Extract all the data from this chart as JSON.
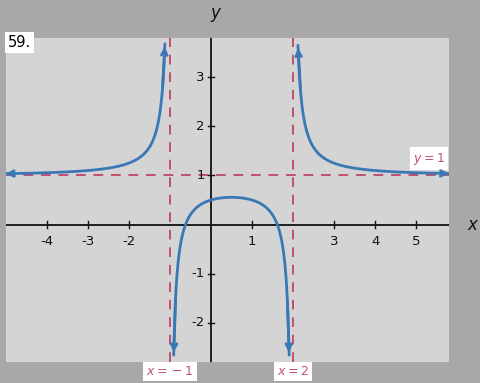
{
  "title_label": "59.",
  "xlabel": "x",
  "ylabel": "y",
  "xlim": [
    -5.0,
    5.8
  ],
  "ylim": [
    -2.8,
    3.8
  ],
  "xticks": [
    -4,
    -3,
    -2,
    1,
    3,
    4,
    5
  ],
  "yticks": [
    -2,
    -1,
    1,
    2,
    3
  ],
  "va_x1": -1,
  "va_x2": 2,
  "ha_y": 1,
  "asymptote_color": "#c05070",
  "curve_color": "#3a78b5",
  "curve_lw": 2.0,
  "asymptote_lw": 1.4,
  "bg_color": "#a8a8a8",
  "panel_color": "#d4d4d4",
  "axis_color": "#111111",
  "label_fontsize": 11,
  "tick_fontsize": 9.5,
  "number_label": "59."
}
